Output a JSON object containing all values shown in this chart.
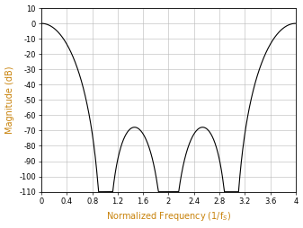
{
  "title": "",
  "xlabel": "Normalized Frequency (1/f$_S$)",
  "ylabel": "Magnitude (dB)",
  "xlim": [
    0,
    4
  ],
  "ylim": [
    -110,
    10
  ],
  "xticks": [
    0,
    0.4,
    0.8,
    1.2,
    1.6,
    2.0,
    2.4,
    2.8,
    3.2,
    3.6,
    4.0
  ],
  "yticks": [
    10,
    0,
    -10,
    -20,
    -30,
    -40,
    -50,
    -60,
    -70,
    -80,
    -90,
    -100,
    -110
  ],
  "line_color": "#000000",
  "axis_label_color": "#c8820a",
  "background_color": "#ffffff",
  "grid_color": "#b8b8b8",
  "figsize": [
    3.37,
    2.54
  ],
  "dpi": 100,
  "decimation": 4,
  "order": 6
}
